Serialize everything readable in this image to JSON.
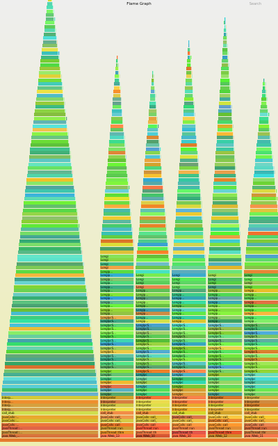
{
  "title": "Flame Graph",
  "search_label": "Search",
  "stacks": [
    {
      "w": 140,
      "h": 118,
      "labels": [
        "java /Web_...",
        "JavaThread::...",
        "JavaThread::...",
        "JavaCalls::...",
        "JavaCalls::...",
        "JavaCalls::...",
        "call_stub",
        "Interp...",
        "Interp...",
        "Interp...",
        "Interp..."
      ]
    },
    {
      "w": 49,
      "h": 100,
      "labels": [
        "java /Web_13",
        "JavaThread::thre",
        "JavaThread::run",
        "JavaCalls::call",
        "JavaCalls::call_",
        "JavaCalls::call_",
        "call_stub",
        "Interpreter",
        "Interpreter",
        "Interpreter",
        "Interpreter",
        "LongIpc",
        "LongIpc",
        "LongIpc",
        "LongIpc",
        "LongIpc",
        "LongIpc",
        "LongIpc",
        "LongIpcS...",
        "LongIpcS...",
        "LongIpcS...",
        "LongIpcS...",
        "LongIpcS...",
        "LongIpcS...",
        "LongIpcS...",
        "LongIpcS...",
        "LongIpcS...",
        "LongIpcS...",
        "LongIpcS...",
        "LongIpcS...",
        "LongIpcS...",
        "LongIpcS...",
        "Longip...",
        "Longip...",
        "Longip...",
        "Longip...",
        "Longip...",
        "Longip...",
        "Longip...",
        "Longip...",
        "Longip...",
        "Longip...",
        "Longip...",
        "Longip...",
        "Longi",
        "Longi",
        "Longi",
        "Longi"
      ]
    },
    {
      "w": 50,
      "h": 96,
      "labels": [
        "java /Web_10",
        "JavaThread::th",
        "JavaThread::run",
        "JavaCalls::call",
        "JavaCalls::call_",
        "JavaCalls::call_",
        "call_stub",
        "Interpreter",
        "Interpreter",
        "Interpreter",
        "Interpreter",
        "LongIpc",
        "LongIpc",
        "LongIpc",
        "LongIpc",
        "LongIpc",
        "LongIpc",
        "LongIpcS...",
        "LongIpcS...",
        "LongIpcS...",
        "LongIpcS...",
        "LongIpcS...",
        "LongIpcS...",
        "LongIpcS...",
        "LongIpcS...",
        "LongIpcS...",
        "LongIpcS...",
        "LongIpcS...",
        "LongIpcS...",
        "LongIpcS...",
        "Longip...",
        "Longip...",
        "Longip...",
        "Longip...",
        "Longip...",
        "Longip...",
        "Longip...",
        "Longip...",
        "Longip...",
        "Longi",
        "Longi",
        "Longi",
        "Longi"
      ]
    },
    {
      "w": 50,
      "h": 104,
      "labels": [
        "java /Web_10",
        "JavaThread::th",
        "JavaThread::run",
        "JavaCalls::call",
        "JavaCalls::call_",
        "JavaCalls::call_",
        "call_stub",
        "Interpreter",
        "Interpreter",
        "Interpreter",
        "Interpreter",
        "LongIpc",
        "LongIpc",
        "LongIpc",
        "LongIpc",
        "LongIpc",
        "LongIpc",
        "LongIpcS...",
        "LongIpcS...",
        "LongIpcS...",
        "LongIpcS...",
        "LongIpcS...",
        "LongIpcS...",
        "LongIpcS...",
        "LongIpcS...",
        "LongIpcS...",
        "LongIpcS...",
        "LongIpcS...",
        "LongIpcS...",
        "LongIpcS...",
        "Longip...",
        "Longip...",
        "Longip...",
        "Longip...",
        "Longip...",
        "Longip...",
        "Longip...",
        "Longip...",
        "Longip...",
        "Longi",
        "Longi",
        "Longi",
        "Longi"
      ]
    },
    {
      "w": 50,
      "h": 110,
      "labels": [
        "java /Web_12",
        "JavaThread::thre",
        "JavaThread::run",
        "JavaCalls::call",
        "JavaCalls::call_",
        "JavaCalls::call_",
        "call_stub",
        "Interpreter",
        "Interpreter",
        "Interpreter",
        "Interpreter",
        "LongIpc",
        "LongIpc",
        "LongIpc",
        "LongIpc",
        "LongIpc",
        "LongIpc",
        "LongIpcS...",
        "LongIpcS...",
        "LongIpcS...",
        "LongIpcS...",
        "LongIpcS...",
        "LongIpcS...",
        "LongIpcS...",
        "LongIpcS...",
        "LongIpcS...",
        "LongIpcS...",
        "LongIpcS...",
        "LongIpcS...",
        "LongIpcS...",
        "Longip...",
        "Longip...",
        "Longip...",
        "Longip...",
        "Longip...",
        "Longip...",
        "Longip...",
        "Longip...",
        "Longip...",
        "Longi",
        "Longi",
        "Longi",
        "Longi"
      ]
    },
    {
      "w": 58,
      "h": 94,
      "labels": [
        "java /Web_11",
        "JavaThread::thr",
        "JavaThread::run",
        "JavaCalls::call",
        "JavaCalls::call_",
        "JavaCalls::call_",
        "call_stub",
        "Interpreter",
        "Interpreter",
        "Interpreter",
        "Interpreter",
        "LongIpc",
        "LongIpc",
        "LongIpc",
        "LongIpc",
        "LongIpc",
        "LongIpc",
        "LongIpcS...",
        "LongIpcS...",
        "LongIpcS...",
        "LongIpcS...",
        "LongIpcS...",
        "LongIpcS...",
        "LongIpcS...",
        "LongIpcS...",
        "LongIpcS...",
        "LongIpcS...",
        "LongIpcS...",
        "LongIpcS...",
        "LongIpcS...",
        "Longip...",
        "Longip...",
        "Longip...",
        "Longip...",
        "Longip...",
        "Longip...",
        "Longip...",
        "Longip...",
        "Longip...",
        "Longi",
        "Longi",
        "Longi",
        "Longi"
      ]
    }
  ]
}
